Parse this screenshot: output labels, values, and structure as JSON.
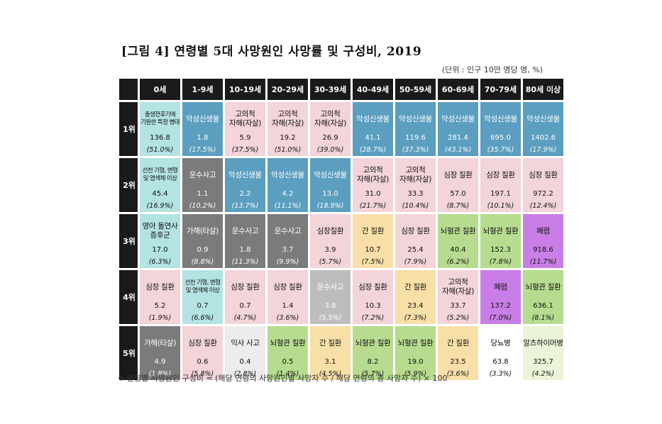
{
  "title": "[그림 4] 연령별 5대 사망원인 사망률 및 구성비, 2019",
  "unit": "(단위 : 인구 10만 명당 명, %)",
  "footnote": "※ 연령별 사망원인 구성비 = (해당 연령의 사망원인별 사망자 수 / 해당 연령의 총 사망자 수) × 100",
  "age_groups": [
    "0세",
    "1-9세",
    "10-19세",
    "20-29세",
    "30-39세",
    "40-49세",
    "50-59세",
    "60-69세",
    "70-79세",
    "80세 이상"
  ],
  "ranks": [
    {
      "label": "1위",
      "cells": [
        {
          "cause": "출생전후기에\n기원한 특정 병태",
          "rate": "136.8",
          "pct": "(51.0%)",
          "color": "#b3e3e2"
        },
        {
          "cause": "악성신생물",
          "rate": "1.8",
          "pct": "(17.5%)",
          "color": "#5b9ebf"
        },
        {
          "cause": "고의적\n자해(자살)",
          "rate": "5.9",
          "pct": "(37.5%)",
          "color": "#f2d4d9"
        },
        {
          "cause": "고의적\n자해(자살)",
          "rate": "19.2",
          "pct": "(51.0%)",
          "color": "#f2d4d9"
        },
        {
          "cause": "고의적\n자해(자살)",
          "rate": "26.9",
          "pct": "(39.0%)",
          "color": "#f2d4d9"
        },
        {
          "cause": "악성신생물",
          "rate": "41.1",
          "pct": "(28.7%)",
          "color": "#5b9ebf"
        },
        {
          "cause": "악성신생물",
          "rate": "119.6",
          "pct": "(37.3%)",
          "color": "#5b9ebf"
        },
        {
          "cause": "악성신생물",
          "rate": "281.4",
          "pct": "(43.1%)",
          "color": "#5b9ebf"
        },
        {
          "cause": "악성신생물",
          "rate": "695.0",
          "pct": "(35.7%)",
          "color": "#5b9ebf"
        },
        {
          "cause": "악성신생물",
          "rate": "1402.6",
          "pct": "(17.9%)",
          "color": "#5b9ebf"
        }
      ]
    },
    {
      "label": "2위",
      "cells": [
        {
          "cause": "선천 기형, 변형\n및 염색체 이상",
          "rate": "45.4",
          "pct": "(16.9%)",
          "color": "#b3e3e2"
        },
        {
          "cause": "운수사고",
          "rate": "1.1",
          "pct": "(10.2%)",
          "color": "#7b7b7b"
        },
        {
          "cause": "악성신생물",
          "rate": "2.2",
          "pct": "(13.7%)",
          "color": "#5b9ebf"
        },
        {
          "cause": "악성신생물",
          "rate": "4.2",
          "pct": "(11.1%)",
          "color": "#5b9ebf"
        },
        {
          "cause": "악성신생물",
          "rate": "13.0",
          "pct": "(18.9%)",
          "color": "#5b9ebf"
        },
        {
          "cause": "고의적\n자해(자살)",
          "rate": "31.0",
          "pct": "(21.7%)",
          "color": "#f2d4d9"
        },
        {
          "cause": "고의적\n자해(자살)",
          "rate": "33.3",
          "pct": "(10.4%)",
          "color": "#f2d4d9"
        },
        {
          "cause": "심장 질환",
          "rate": "57.0",
          "pct": "(8.7%)",
          "color": "#f2d4d9"
        },
        {
          "cause": "심장 질환",
          "rate": "197.1",
          "pct": "(10.1%)",
          "color": "#f2d4d9"
        },
        {
          "cause": "심장 질환",
          "rate": "972.2",
          "pct": "(12.4%)",
          "color": "#f2d4d9"
        }
      ]
    },
    {
      "label": "3위",
      "cells": [
        {
          "cause": "영아 돌연사\n증후군",
          "rate": "17.0",
          "pct": "(6.3%)",
          "color": "#b3e3e2"
        },
        {
          "cause": "가해(타살)",
          "rate": "0.9",
          "pct": "(8.8%)",
          "color": "#7b7b7b"
        },
        {
          "cause": "운수사고",
          "rate": "1.8",
          "pct": "(11.3%)",
          "color": "#7b7b7b"
        },
        {
          "cause": "운수사고",
          "rate": "3.7",
          "pct": "(9.9%)",
          "color": "#7b7b7b"
        },
        {
          "cause": "심장질환",
          "rate": "3.9",
          "pct": "(5.7%)",
          "color": "#f2d4d9"
        },
        {
          "cause": "간 질환",
          "rate": "10.7",
          "pct": "(7.5%)",
          "color": "#f8dfa7"
        },
        {
          "cause": "심장 질환",
          "rate": "25.4",
          "pct": "(7.9%)",
          "color": "#f2d4d9"
        },
        {
          "cause": "뇌혈관 질환",
          "rate": "40.4",
          "pct": "(6.2%)",
          "color": "#b7dc8f"
        },
        {
          "cause": "뇌혈관 질환",
          "rate": "152.3",
          "pct": "(7.8%)",
          "color": "#b7dc8f"
        },
        {
          "cause": "폐렴",
          "rate": "918.6",
          "pct": "(11.7%)",
          "color": "#c87ee6"
        }
      ]
    },
    {
      "label": "4위",
      "cells": [
        {
          "cause": "심장 질환",
          "rate": "5.2",
          "pct": "(1.9%)",
          "color": "#f2d4d9"
        },
        {
          "cause": "선천 기형, 변형\n및 염색체 이상",
          "rate": "0.7",
          "pct": "(6.6%)",
          "color": "#b3e3e2"
        },
        {
          "cause": "심장 질환",
          "rate": "0.7",
          "pct": "(4.7%)",
          "color": "#f2d4d9"
        },
        {
          "cause": "심장 질환",
          "rate": "1.4",
          "pct": "(3.6%)",
          "color": "#f2d4d9"
        },
        {
          "cause": "운수사고",
          "rate": "3.8",
          "pct": "(5.5%)",
          "color": "#bdbdbd"
        },
        {
          "cause": "심장 질환",
          "rate": "10.3",
          "pct": "(7.2%)",
          "color": "#f2d4d9"
        },
        {
          "cause": "간 질환",
          "rate": "23.4",
          "pct": "(7.3%)",
          "color": "#f8dfa7"
        },
        {
          "cause": "고의적\n자해(자살)",
          "rate": "33.7",
          "pct": "(5.2%)",
          "color": "#f2d4d9"
        },
        {
          "cause": "폐렴",
          "rate": "137.2",
          "pct": "(7.0%)",
          "color": "#c87ee6"
        },
        {
          "cause": "뇌혈관 질환",
          "rate": "636.1",
          "pct": "(8.1%)",
          "color": "#b7dc8f"
        }
      ]
    },
    {
      "label": "5위",
      "cells": [
        {
          "cause": "가해(타살)",
          "rate": "4.9",
          "pct": "(1.8%)",
          "color": "#7b7b7b"
        },
        {
          "cause": "심장 질환",
          "rate": "0.6",
          "pct": "(5.8%)",
          "color": "#f2d4d9"
        },
        {
          "cause": "익사 사고",
          "rate": "0.4",
          "pct": "(2.8%)",
          "color": "#ececec"
        },
        {
          "cause": "뇌혈관 질환",
          "rate": "0.5",
          "pct": "(1.4%)",
          "color": "#b7dc8f"
        },
        {
          "cause": "간 질환",
          "rate": "3.1",
          "pct": "(4.5%)",
          "color": "#f8dfa7"
        },
        {
          "cause": "뇌혈관 질환",
          "rate": "8.2",
          "pct": "(5.7%)",
          "color": "#b7dc8f"
        },
        {
          "cause": "뇌혈관 질환",
          "rate": "19.0",
          "pct": "(5.9%)",
          "color": "#b7dc8f"
        },
        {
          "cause": "간 질환",
          "rate": "23.5",
          "pct": "(3.6%)",
          "color": "#f8dfa7"
        },
        {
          "cause": "당뇨병",
          "rate": "63.8",
          "pct": "(3.3%)",
          "color": "#ffffff"
        },
        {
          "cause": "알츠하이머병",
          "rate": "325.7",
          "pct": "(4.2%)",
          "color": "#ebf3d8"
        }
      ]
    }
  ]
}
